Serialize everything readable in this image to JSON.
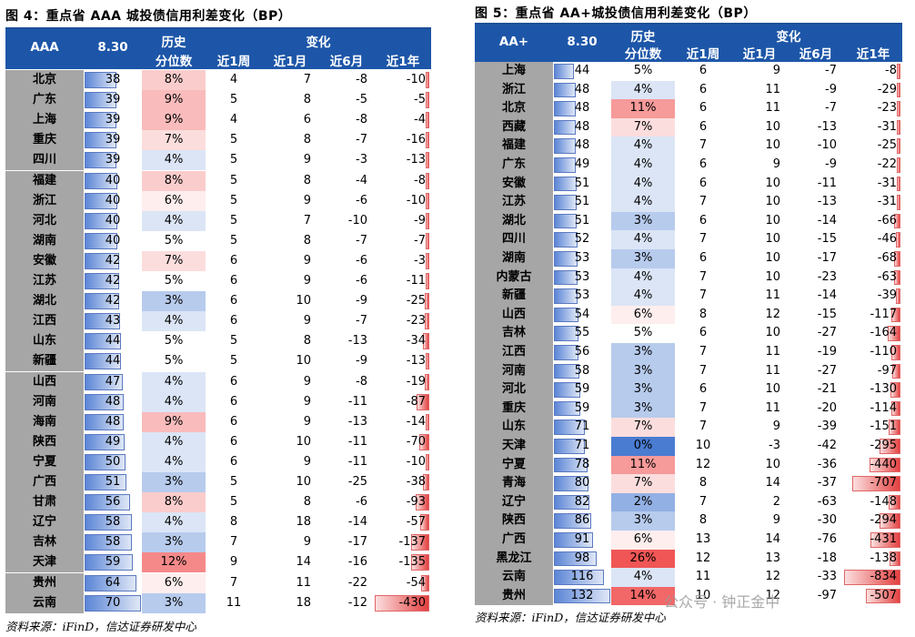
{
  "left": {
    "title": "图 4：重点省 AAA 城投债信用利差变化（BP）",
    "header": {
      "rating": "AAA",
      "date": "8.30",
      "hist_top": "历史",
      "hist_bottom": "分位数",
      "change": "变化",
      "w": "近1周",
      "m": "近1月",
      "m6": "近6月",
      "y": "近1年"
    },
    "rows": [
      [
        "北京",
        38,
        "8%",
        4,
        7,
        -8,
        -10
      ],
      [
        "广东",
        39,
        "9%",
        5,
        8,
        -5,
        -5
      ],
      [
        "上海",
        39,
        "9%",
        4,
        6,
        -8,
        -4
      ],
      [
        "重庆",
        39,
        "7%",
        5,
        8,
        -7,
        -16
      ],
      [
        "四川",
        39,
        "4%",
        5,
        9,
        -3,
        -13
      ],
      [
        "福建",
        40,
        "8%",
        5,
        8,
        -4,
        -8
      ],
      [
        "浙江",
        40,
        "6%",
        5,
        9,
        -6,
        -10
      ],
      [
        "河北",
        40,
        "4%",
        5,
        7,
        -10,
        -9
      ],
      [
        "湖南",
        40,
        "5%",
        5,
        8,
        -7,
        -7
      ],
      [
        "安徽",
        42,
        "7%",
        6,
        9,
        -6,
        -3
      ],
      [
        "江苏",
        42,
        "5%",
        6,
        9,
        -6,
        -11
      ],
      [
        "湖北",
        42,
        "3%",
        6,
        10,
        -9,
        -25
      ],
      [
        "江西",
        43,
        "4%",
        6,
        9,
        -7,
        -23
      ],
      [
        "山东",
        44,
        "5%",
        5,
        8,
        -13,
        -34
      ],
      [
        "新疆",
        44,
        "5%",
        5,
        10,
        -9,
        -13
      ],
      [
        "山西",
        47,
        "4%",
        6,
        9,
        -8,
        -19
      ],
      [
        "河南",
        48,
        "4%",
        6,
        9,
        -11,
        -87
      ],
      [
        "海南",
        48,
        "9%",
        6,
        9,
        -13,
        -14
      ],
      [
        "陕西",
        49,
        "4%",
        6,
        10,
        -11,
        -70
      ],
      [
        "宁夏",
        50,
        "4%",
        6,
        9,
        -11,
        -10
      ],
      [
        "广西",
        51,
        "3%",
        5,
        10,
        -25,
        -38
      ],
      [
        "甘肃",
        56,
        "8%",
        5,
        8,
        -6,
        -93
      ],
      [
        "辽宁",
        58,
        "4%",
        8,
        18,
        -14,
        -57
      ],
      [
        "吉林",
        58,
        "3%",
        7,
        9,
        -17,
        -137
      ],
      [
        "天津",
        59,
        "12%",
        9,
        14,
        -16,
        -135
      ],
      [
        "贵州",
        64,
        "6%",
        7,
        11,
        -22,
        -54
      ],
      [
        "云南",
        70,
        "3%",
        11,
        18,
        -12,
        -430
      ]
    ],
    "source": "资料来源：iFinD，信达证券研发中心"
  },
  "right": {
    "title": "图 5：重点省 AA+城投债信用利差变化（BP）",
    "header": {
      "rating": "AA+",
      "date": "8.30",
      "hist_top": "历史",
      "hist_bottom": "分位数",
      "change": "变化",
      "w": "近1周",
      "m": "近1月",
      "m6": "近6月",
      "y": "近1年"
    },
    "rows": [
      [
        "上海",
        44,
        "5%",
        6,
        9,
        -7,
        -8
      ],
      [
        "浙江",
        48,
        "4%",
        6,
        11,
        -9,
        -29
      ],
      [
        "北京",
        48,
        "11%",
        6,
        11,
        -7,
        -23
      ],
      [
        "西藏",
        48,
        "7%",
        6,
        10,
        -13,
        -31
      ],
      [
        "福建",
        48,
        "4%",
        7,
        10,
        -10,
        -25
      ],
      [
        "广东",
        49,
        "4%",
        6,
        9,
        -9,
        -22
      ],
      [
        "安徽",
        51,
        "4%",
        6,
        10,
        -11,
        -31
      ],
      [
        "江苏",
        51,
        "4%",
        7,
        10,
        -13,
        -31
      ],
      [
        "湖北",
        51,
        "3%",
        6,
        10,
        -14,
        -66
      ],
      [
        "四川",
        52,
        "4%",
        7,
        10,
        -15,
        -46
      ],
      [
        "湖南",
        53,
        "3%",
        6,
        10,
        -17,
        -68
      ],
      [
        "内蒙古",
        53,
        "4%",
        7,
        10,
        -23,
        -63
      ],
      [
        "新疆",
        53,
        "4%",
        7,
        11,
        -14,
        -39
      ],
      [
        "山西",
        54,
        "6%",
        8,
        12,
        -15,
        -117
      ],
      [
        "吉林",
        55,
        "5%",
        6,
        10,
        -27,
        -164
      ],
      [
        "江西",
        56,
        "3%",
        7,
        11,
        -19,
        -110
      ],
      [
        "河南",
        58,
        "3%",
        7,
        11,
        -27,
        -97
      ],
      [
        "河北",
        59,
        "3%",
        6,
        10,
        -21,
        -130
      ],
      [
        "重庆",
        59,
        "3%",
        7,
        11,
        -20,
        -114
      ],
      [
        "山东",
        71,
        "7%",
        7,
        9,
        -39,
        -151
      ],
      [
        "天津",
        71,
        "0%",
        10,
        -3,
        -42,
        -295
      ],
      [
        "宁夏",
        78,
        "11%",
        12,
        10,
        -36,
        -440
      ],
      [
        "青海",
        80,
        "7%",
        8,
        14,
        -37,
        -707
      ],
      [
        "辽宁",
        82,
        "2%",
        7,
        2,
        -63,
        -148
      ],
      [
        "陕西",
        86,
        "3%",
        8,
        9,
        -30,
        -294
      ],
      [
        "广西",
        91,
        "6%",
        13,
        14,
        -76,
        -431
      ],
      [
        "黑龙江",
        98,
        "26%",
        12,
        13,
        -18,
        -138
      ],
      [
        "云南",
        116,
        "4%",
        11,
        12,
        -33,
        -834
      ],
      [
        "贵州",
        132,
        "14%",
        10,
        12,
        -97,
        -507
      ]
    ],
    "source": "资料来源：iFinD，信达证券研发中心"
  },
  "watermark": "公众号 · 钟正金中"
}
